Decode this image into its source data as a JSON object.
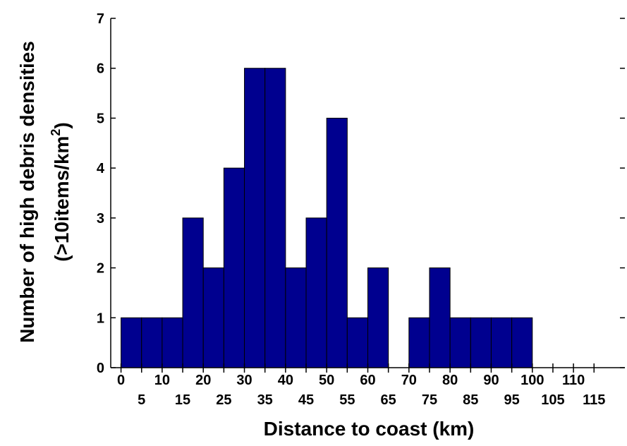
{
  "chart_data": {
    "type": "bar",
    "bin_width": 5,
    "x": [
      0,
      5,
      10,
      15,
      20,
      25,
      30,
      35,
      40,
      45,
      50,
      55,
      60,
      65,
      70,
      75,
      80,
      85,
      90,
      95,
      100,
      105,
      110,
      115
    ],
    "x_tick_labels_upper": [
      "0",
      "10",
      "20",
      "30",
      "40",
      "50",
      "60",
      "70",
      "80",
      "90",
      "100",
      "110"
    ],
    "x_tick_labels_lower": [
      "5",
      "15",
      "25",
      "35",
      "45",
      "55",
      "65",
      "75",
      "85",
      "95",
      "105",
      "115"
    ],
    "values": [
      1,
      1,
      1,
      3,
      2,
      4,
      6,
      6,
      2,
      3,
      5,
      1,
      2,
      0,
      1,
      2,
      1,
      1,
      1,
      1,
      0,
      0,
      0,
      0
    ],
    "y_ticks": [
      "0",
      "1",
      "2",
      "3",
      "4",
      "5",
      "6",
      "7"
    ],
    "xlabel": "Distance to coast (km)",
    "ylabel_line1": "Number of high debris densities",
    "ylabel_line2": "(>10items/km",
    "ylabel_sup": "2",
    "ylabel_close": ")",
    "xlim": [
      -2.5,
      122.5
    ],
    "ylim": [
      0,
      7
    ],
    "grid": false,
    "colors": {
      "bar": "#00008f",
      "axis": "#000000"
    }
  }
}
